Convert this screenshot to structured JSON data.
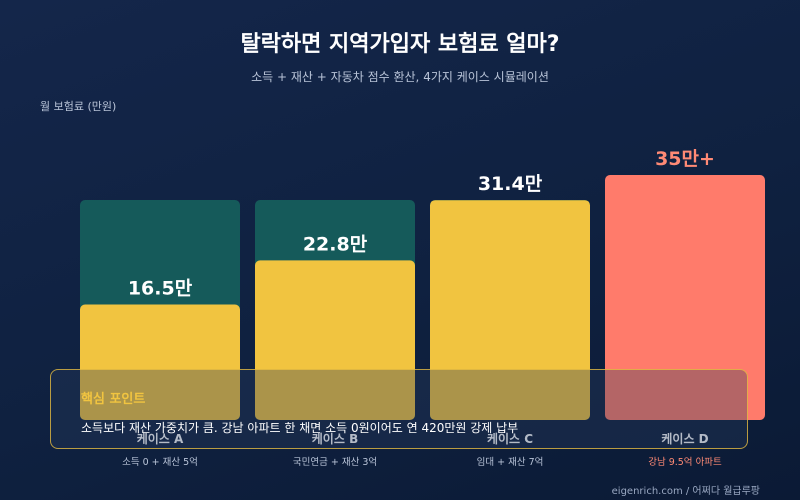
{
  "header": {
    "title": "탈락하면 지역가입자 보험료 얼마?",
    "subtitle": "소득 + 재산 + 자동차 점수 환산, 4가지 케이스 시뮬레이션"
  },
  "chart_data": {
    "type": "bar",
    "title": "탈락하면 지역가입자 보험료 얼마?",
    "subtitle": "소득 + 재산 + 자동차 점수 환산, 4가지 케이스 시뮬레이션",
    "ylabel": "월 보험료 (만원)",
    "ylim": [
      0,
      35
    ],
    "grid": false,
    "categories": [
      "케이스 A",
      "케이스 B",
      "케이스 C",
      "케이스 D"
    ],
    "descriptions": [
      "소득 0 + 재산 5억",
      "국민연금 + 재산 3억",
      "임대 + 재산 7억",
      "강남 9.5억 아파트"
    ],
    "values": [
      16.5,
      22.8,
      31.4,
      35
    ],
    "value_labels": [
      "16.5만",
      "22.8만",
      "31.4만",
      "35만+"
    ],
    "colors": {
      "bar_primary": "#f1c440",
      "bar_background": "#155a5a",
      "bar_highlight": "#ff7b6b",
      "label_highlight": "#ff8a75"
    }
  },
  "insight": {
    "title": "핵심 포인트",
    "text": "소득보다 재산 가중치가 큼. 강남 아파트 한 채면 소득 0원이어도 연 420만원 강제 납부"
  },
  "footer": {
    "source": "eigenrich.com / 어쩌다 월급루팡"
  }
}
